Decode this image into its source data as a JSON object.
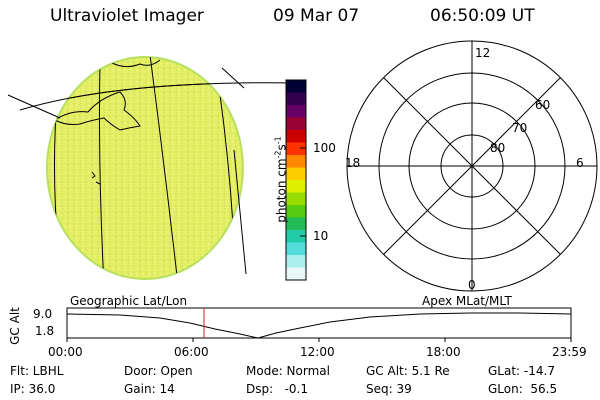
{
  "header": {
    "instrument": "Ultraviolet Imager",
    "date": "09 Mar 07",
    "time": "06:50:09 UT"
  },
  "colorbar": {
    "label_main": "photon cm",
    "label_sup1": "-2",
    "label_mid": "s",
    "label_sup2": "-1",
    "ticks": [
      "100",
      "10"
    ],
    "colors": [
      "#000033",
      "#33004d",
      "#660066",
      "#990033",
      "#cc0000",
      "#ff3300",
      "#ff8800",
      "#ffcc00",
      "#ddee00",
      "#99dd00",
      "#55cc11",
      "#22bb55",
      "#22ccaa",
      "#55dddd",
      "#aaeeee",
      "#e8f8f8"
    ]
  },
  "polar": {
    "mlt_labels": {
      "top": "12",
      "bottom": "0",
      "left": "18",
      "right": "6"
    },
    "lat_labels": [
      "60",
      "70",
      "80"
    ]
  },
  "altitude_plot": {
    "ylabel": "GC Alt",
    "ytick_top": "9.0",
    "ytick_bottom": "1.8",
    "left_title": "Geographic Lat/Lon",
    "right_title": "Apex MLat/MLT",
    "xticks": [
      "00:00",
      "06:00",
      "12:00",
      "18:00",
      "23:59"
    ]
  },
  "info": {
    "flt": "Flt: LBHL",
    "ip": "IP: 36.0",
    "door": "Door: Open",
    "gain": "Gain: 14",
    "mode": "Mode: Normal",
    "dsp": "Dsp:   -0.1",
    "gcalt": "GC Alt: 5.1 Re",
    "seq": "Seq: 39",
    "glat": "GLat: -14.7",
    "glon": "GLon:  56.5"
  },
  "colors": {
    "earth_disk": "#e6f060",
    "current_time_marker": "#cc2222"
  }
}
